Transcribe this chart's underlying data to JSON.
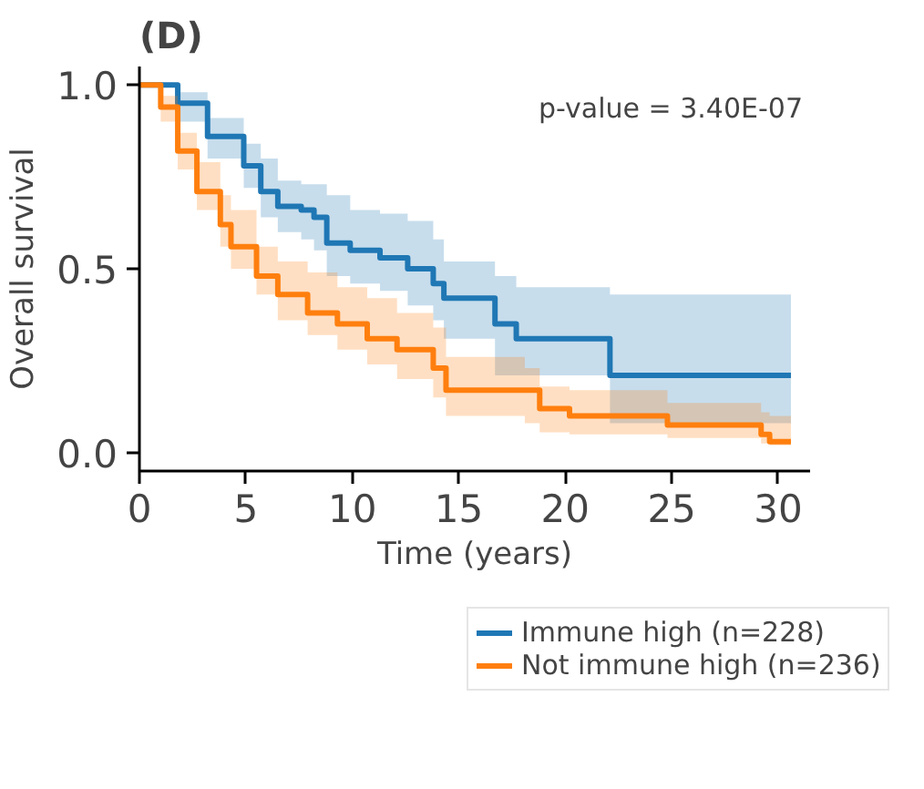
{
  "chart_data": {
    "type": "step",
    "title": "(D)",
    "xlabel": "Time (years)",
    "ylabel": "Overall survival",
    "annotations": [
      "p-value = 3.40E-07"
    ],
    "xlim": [
      0,
      31.5
    ],
    "ylim": [
      -0.05,
      1.05
    ],
    "xticks": [
      0,
      5,
      10,
      15,
      20,
      25,
      30
    ],
    "yticks": [
      {
        "value": 0,
        "label": "0.0"
      },
      {
        "value": 0.5,
        "label": "0.5"
      },
      {
        "value": 1,
        "label": "1.0"
      }
    ],
    "grid": false,
    "legend": "bottom",
    "series": [
      {
        "name": "Immune high (n=228)",
        "color": "#1f77b4",
        "x": [
          0,
          1.8,
          3.2,
          4.9,
          5.7,
          6.5,
          7.6,
          8.2,
          8.8,
          9.9,
          11.3,
          12.6,
          13.8,
          14.3,
          16.7,
          17.7,
          22.1,
          30.6
        ],
        "values": [
          1,
          0.95,
          0.86,
          0.78,
          0.71,
          0.67,
          0.66,
          0.64,
          0.57,
          0.55,
          0.53,
          0.5,
          0.46,
          0.42,
          0.35,
          0.31,
          0.21,
          0.21
        ],
        "upper": [
          1,
          0.98,
          0.91,
          0.84,
          0.8,
          0.74,
          0.73,
          0.73,
          0.7,
          0.66,
          0.65,
          0.63,
          0.58,
          0.52,
          0.48,
          0.45,
          0.43,
          0.43
        ],
        "lower": [
          1,
          0.9,
          0.8,
          0.72,
          0.64,
          0.6,
          0.58,
          0.55,
          0.48,
          0.46,
          0.44,
          0.4,
          0.36,
          0.31,
          0.21,
          0.21,
          0.08,
          0.08
        ]
      },
      {
        "name": "Not immune high (n=236)",
        "color": "#ff7f0e",
        "x": [
          0,
          1,
          1.8,
          2.7,
          3.8,
          4.3,
          5.5,
          6.5,
          7.9,
          9.3,
          10.7,
          12.1,
          13.8,
          14.4,
          18.1,
          18.8,
          20.2,
          24.8,
          29.2,
          29.6,
          30.6
        ],
        "values": [
          1,
          0.94,
          0.82,
          0.71,
          0.62,
          0.56,
          0.48,
          0.43,
          0.38,
          0.35,
          0.31,
          0.28,
          0.23,
          0.17,
          0.17,
          0.12,
          0.1,
          0.075,
          0.05,
          0.03,
          0.03
        ],
        "upper": [
          1,
          0.97,
          0.87,
          0.79,
          0.7,
          0.66,
          0.56,
          0.52,
          0.49,
          0.45,
          0.42,
          0.38,
          0.34,
          0.26,
          0.23,
          0.18,
          0.17,
          0.135,
          0.11,
          0.1,
          0.1
        ],
        "lower": [
          1,
          0.9,
          0.77,
          0.66,
          0.56,
          0.5,
          0.43,
          0.36,
          0.32,
          0.28,
          0.24,
          0.2,
          0.15,
          0.1,
          0.08,
          0.055,
          0.05,
          0.04,
          0.025,
          0.02,
          0.02
        ]
      }
    ]
  }
}
